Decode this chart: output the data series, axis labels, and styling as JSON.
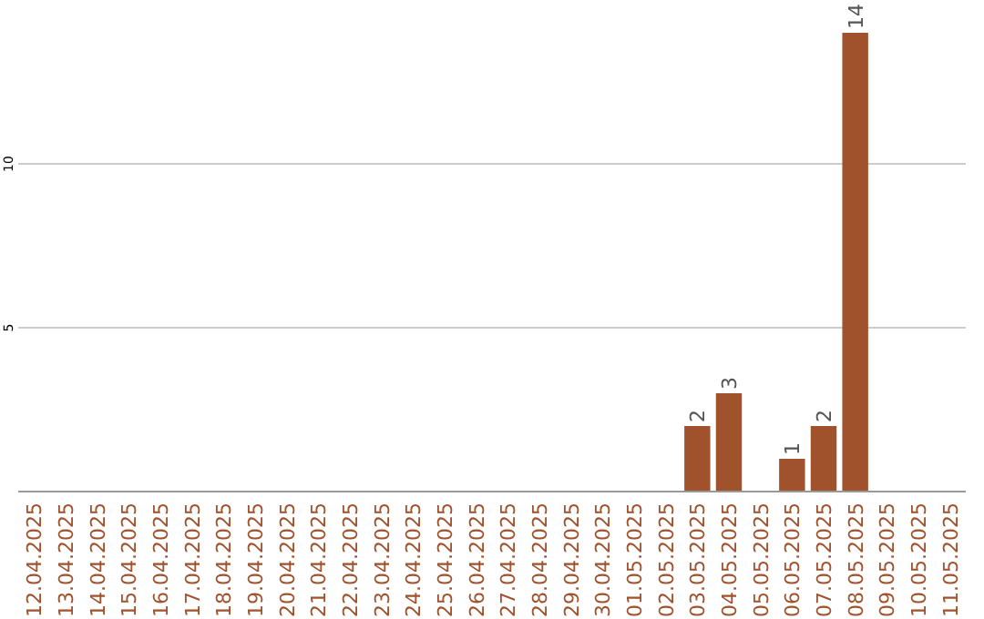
{
  "chart_data": {
    "type": "bar",
    "categories": [
      "12.04.2025",
      "13.04.2025",
      "14.04.2025",
      "15.04.2025",
      "16.04.2025",
      "17.04.2025",
      "18.04.2025",
      "19.04.2025",
      "20.04.2025",
      "21.04.2025",
      "22.04.2025",
      "23.04.2025",
      "24.04.2025",
      "25.04.2025",
      "26.04.2025",
      "27.04.2025",
      "28.04.2025",
      "29.04.2025",
      "30.04.2025",
      "01.05.2025",
      "02.05.2025",
      "03.05.2025",
      "04.05.2025",
      "05.05.2025",
      "06.05.2025",
      "07.05.2025",
      "08.05.2025",
      "09.05.2025",
      "10.05.2025",
      "11.05.2025"
    ],
    "values": [
      0,
      0,
      0,
      0,
      0,
      0,
      0,
      0,
      0,
      0,
      0,
      0,
      0,
      0,
      0,
      0,
      0,
      0,
      0,
      0,
      0,
      2,
      3,
      0,
      1,
      2,
      14,
      0,
      0,
      0
    ],
    "value_labels": [
      null,
      null,
      null,
      null,
      null,
      null,
      null,
      null,
      null,
      null,
      null,
      null,
      null,
      null,
      null,
      null,
      null,
      null,
      null,
      null,
      null,
      "2",
      "3",
      null,
      "1",
      "2",
      "14",
      null,
      null,
      null
    ],
    "color": "#a0522d",
    "ylim": [
      0,
      14
    ],
    "yticks": [
      5,
      10
    ],
    "grid": "y"
  }
}
